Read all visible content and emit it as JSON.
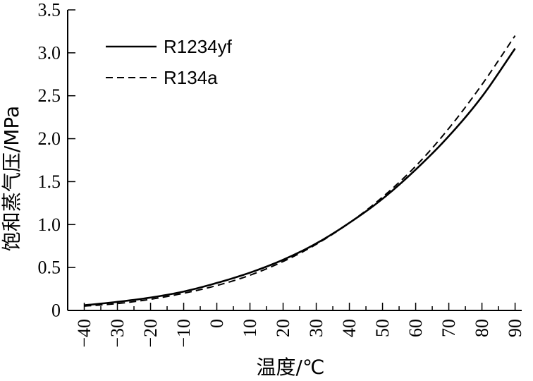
{
  "chart_data": {
    "type": "line",
    "title": "",
    "xlabel": "温度/℃",
    "ylabel": "饱和蒸气压/MPa",
    "xlim": [
      -45,
      92
    ],
    "ylim": [
      0,
      3.5
    ],
    "xticks": [
      -40,
      -30,
      -20,
      -10,
      0,
      10,
      20,
      30,
      40,
      50,
      60,
      70,
      80,
      90
    ],
    "xtick_labels": [
      "−40",
      "−30",
      "−20",
      "−10",
      "0",
      "10",
      "20",
      "30",
      "40",
      "50",
      "60",
      "70",
      "80",
      "90"
    ],
    "yticks": [
      0,
      0.5,
      1.0,
      1.5,
      2.0,
      2.5,
      3.0,
      3.5
    ],
    "ytick_labels": [
      "0",
      "0.5",
      "1.0",
      "1.5",
      "2.0",
      "2.5",
      "3.0",
      "3.5"
    ],
    "grid": false,
    "legend_position": "top-left",
    "x": [
      -40,
      -30,
      -20,
      -10,
      0,
      10,
      20,
      30,
      40,
      50,
      60,
      70,
      80,
      90
    ],
    "series": [
      {
        "name": "R1234yf",
        "style": "solid",
        "color": "#000000",
        "values": [
          0.06,
          0.1,
          0.15,
          0.22,
          0.32,
          0.44,
          0.59,
          0.78,
          1.02,
          1.3,
          1.64,
          2.03,
          2.49,
          3.05
        ]
      },
      {
        "name": "R134a",
        "style": "dashed",
        "color": "#000000",
        "values": [
          0.05,
          0.08,
          0.13,
          0.2,
          0.29,
          0.41,
          0.57,
          0.77,
          1.02,
          1.32,
          1.68,
          2.12,
          2.63,
          3.2
        ]
      }
    ]
  }
}
